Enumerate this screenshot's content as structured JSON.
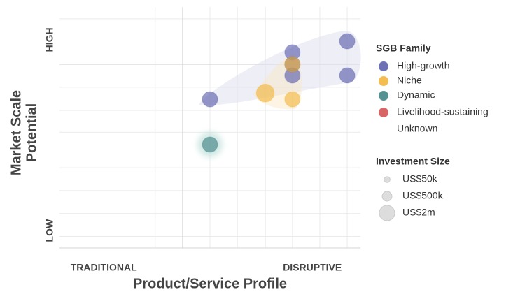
{
  "chart_data": {
    "type": "scatter",
    "x_label": "Product/Service Profile",
    "y_label": [
      "Market Scale",
      "Potential"
    ],
    "xlim": [
      0,
      1
    ],
    "ylim": [
      0,
      1
    ],
    "xticks": [
      {
        "value": 0.147,
        "label": "TRADITIONAL"
      },
      {
        "value": 0.84,
        "label": "DISRUPTIVE"
      }
    ],
    "yticks": [
      {
        "value": 0.072,
        "label": "LOW"
      },
      {
        "value": 0.864,
        "label": "HIGH"
      }
    ],
    "xgrid": [
      0.318,
      0.5,
      0.591,
      0.684,
      0.774,
      0.865,
      0.956
    ],
    "ygrid": [
      0.048,
      0.143,
      0.238,
      0.333,
      0.48,
      0.571,
      0.667,
      0.951
    ],
    "xmajor": [
      0.409
    ],
    "ymajor": [
      0.762
    ],
    "legend_title": "SGB Family",
    "series": [
      {
        "name": "High-growth",
        "color": "#5457a8",
        "x": [
          0.5,
          0.774,
          0.774,
          0.774,
          0.956,
          0.956
        ],
        "values": [
          0.617,
          0.812,
          0.762,
          0.716,
          0.858,
          0.716
        ],
        "sizes": [
          2000000,
          2000000,
          2000000,
          2000000,
          2000000,
          2000000
        ]
      },
      {
        "name": "Niche",
        "color": "#f2b233",
        "x": [
          0.684,
          0.774,
          0.774
        ],
        "values": [
          0.643,
          0.617,
          0.762
        ],
        "sizes": [
          3000000,
          2000000,
          2000000
        ]
      },
      {
        "name": "Dynamic",
        "color": "#3a7f80",
        "x": [
          0.5
        ],
        "values": [
          0.429
        ],
        "sizes": [
          2000000
        ]
      },
      {
        "name": "Livelihood-sustaining",
        "color": "#d04a4a",
        "x": [],
        "values": [],
        "sizes": []
      },
      {
        "name": "Unknown",
        "x": [],
        "values": [],
        "sizes": []
      }
    ],
    "size_legend": {
      "title": "Investment Size",
      "values": [
        50000,
        500000,
        2000000
      ],
      "labels": [
        "US$50k",
        "US$500k",
        "US$2m"
      ]
    }
  }
}
